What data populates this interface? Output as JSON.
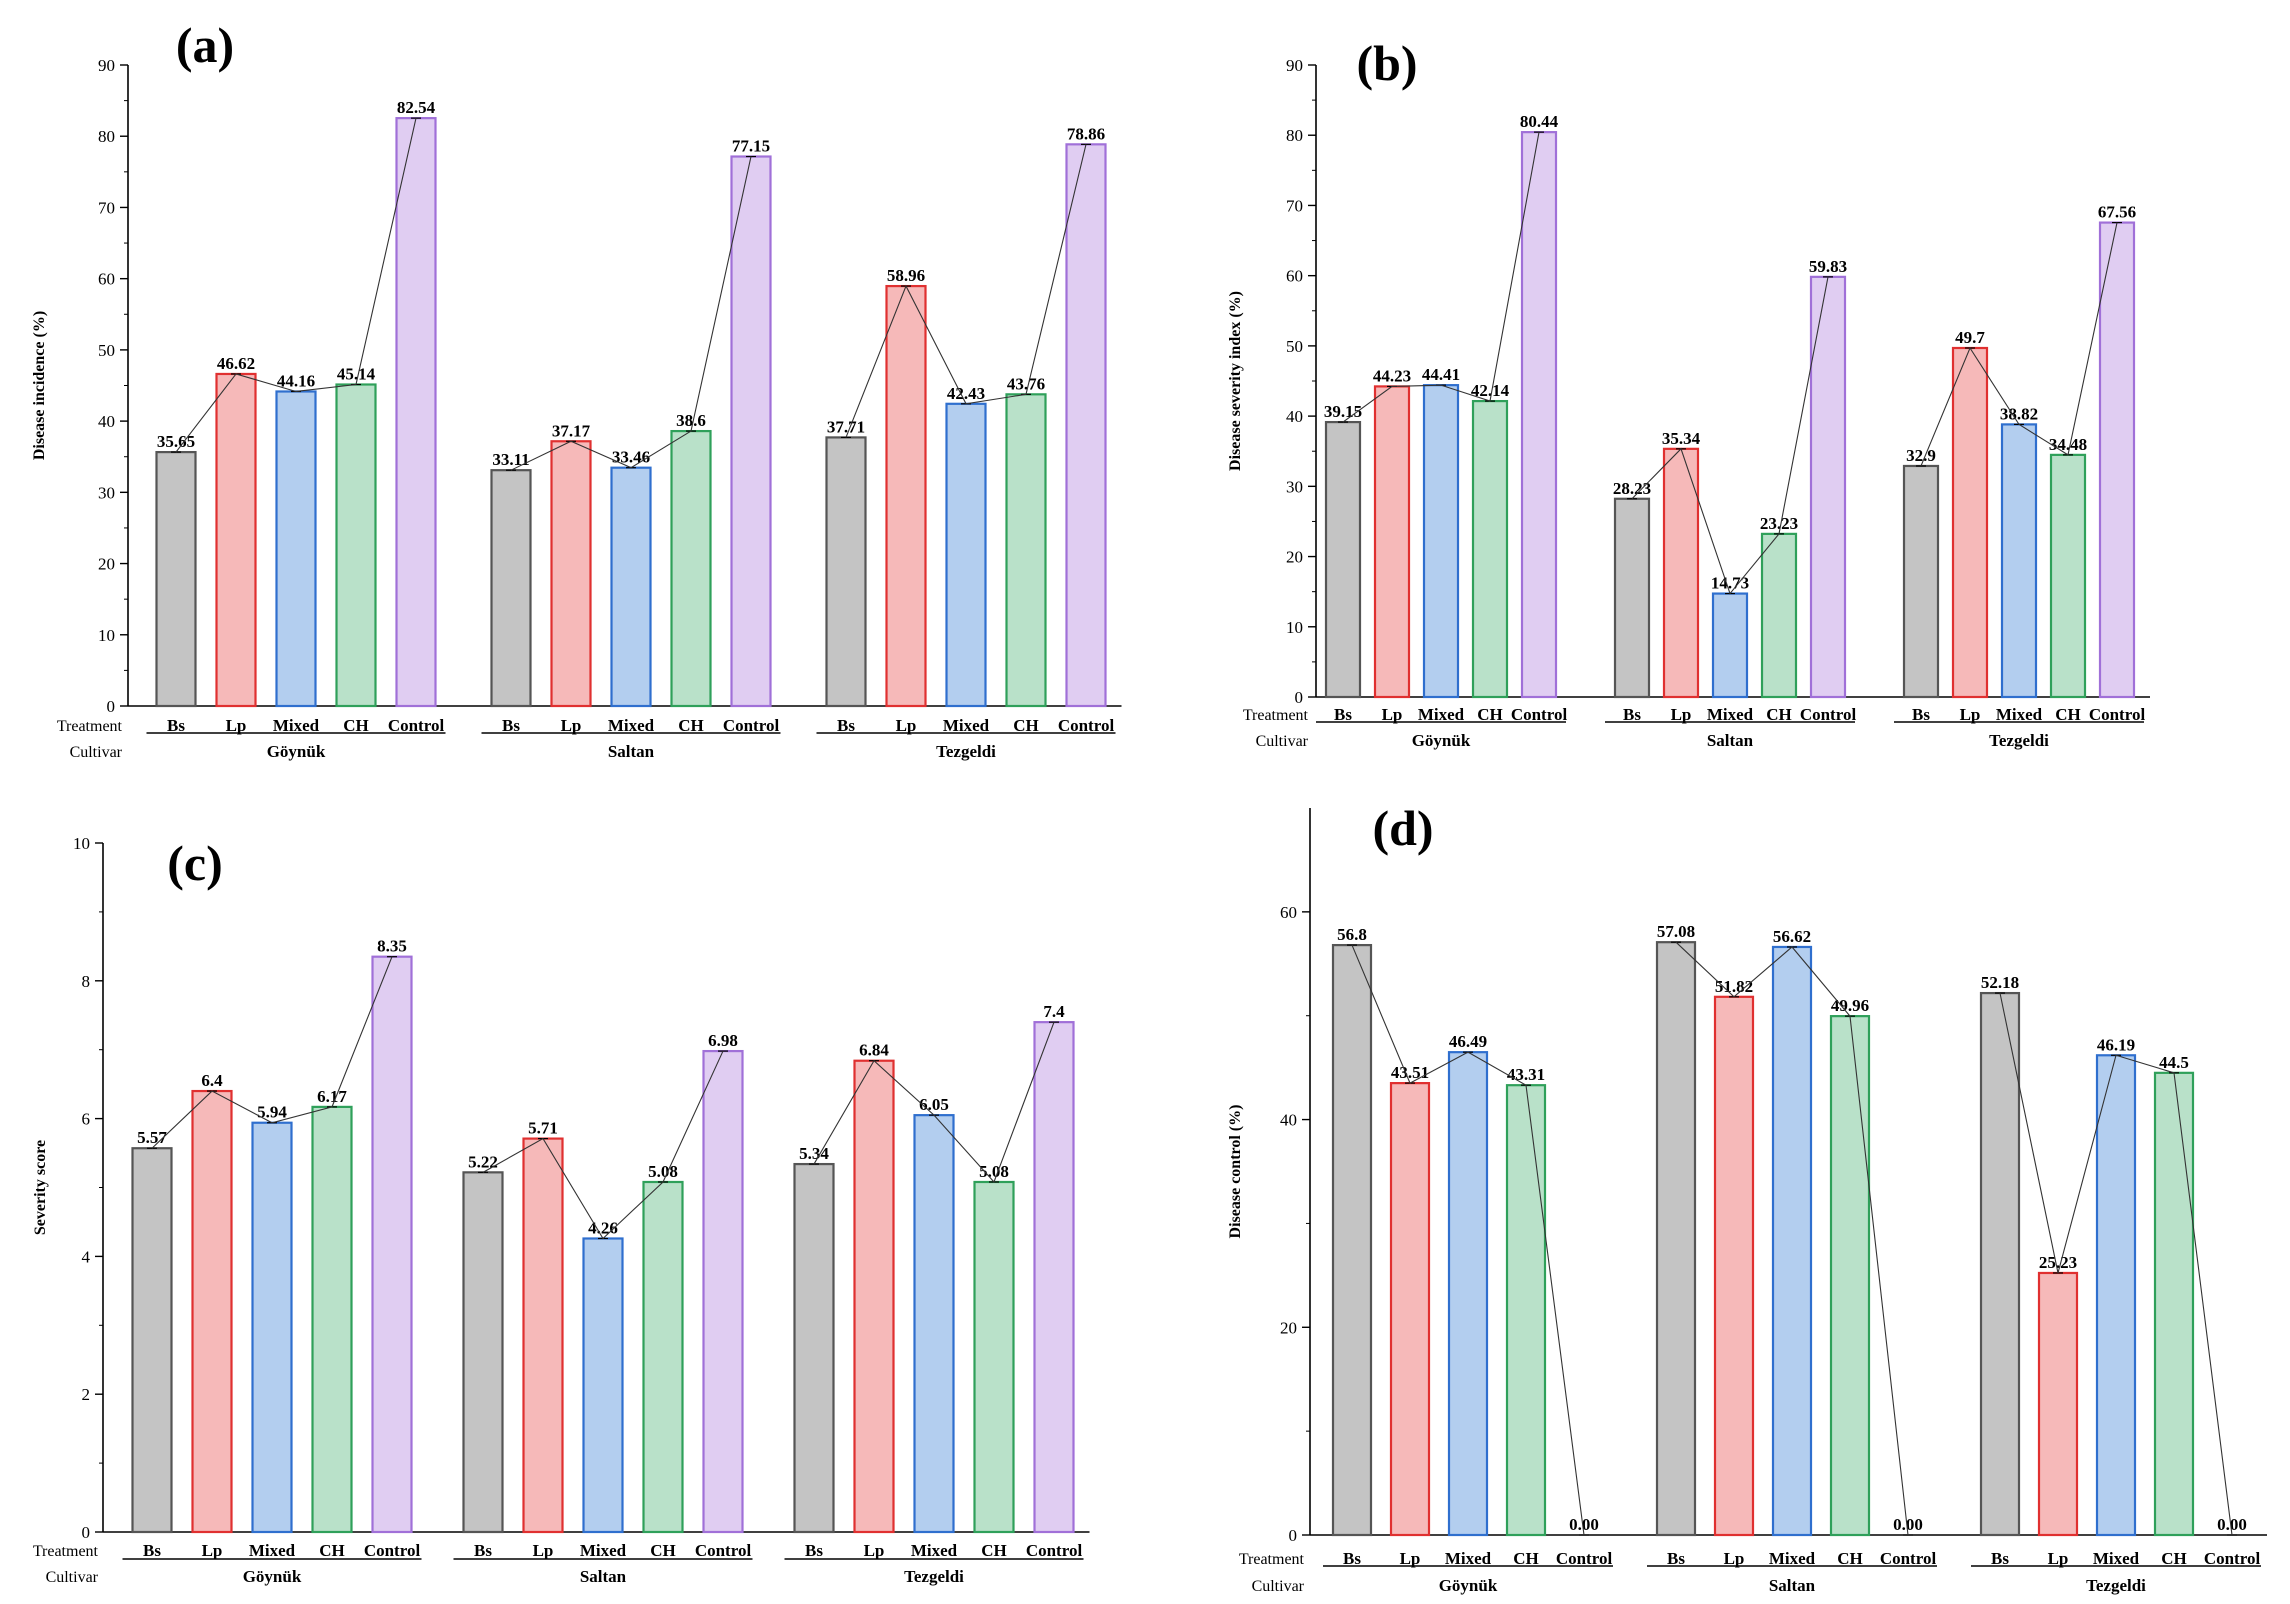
{
  "row_labels": {
    "treatment": "Treatment",
    "cultivar": "Cultivar"
  },
  "colors": {
    "Bs": {
      "fill": "#c4c4c4",
      "stroke": "#555555"
    },
    "Lp": {
      "fill": "#f6b9b9",
      "stroke": "#e03030"
    },
    "Mixed": {
      "fill": "#b3ceef",
      "stroke": "#2f6fce"
    },
    "CH": {
      "fill": "#b9e1c9",
      "stroke": "#2fa05a"
    },
    "Control": {
      "fill": "#e0cdf2",
      "stroke": "#a070d8"
    }
  },
  "chart_data": [
    {
      "panel": "(a)",
      "type": "bar",
      "ylabel": "Disease incidence (%)",
      "ylim": [
        0,
        90
      ],
      "yticks": [
        0,
        10,
        20,
        30,
        40,
        50,
        60,
        70,
        80,
        90
      ],
      "treatments": [
        "Bs",
        "Lp",
        "Mixed",
        "CH",
        "Control"
      ],
      "cultivars": [
        "Göynük",
        "Saltan",
        "Tezgeldi"
      ],
      "values": [
        [
          35.65,
          46.62,
          44.16,
          45.14,
          82.54
        ],
        [
          33.11,
          37.17,
          33.46,
          38.6,
          77.15
        ],
        [
          37.71,
          58.96,
          42.43,
          43.76,
          78.86
        ]
      ],
      "labels": [
        [
          "35.65",
          "46.62",
          "44.16",
          "45.14",
          "82.54"
        ],
        [
          "33.11",
          "37.17",
          "33.46",
          "38.6",
          "77.15"
        ],
        [
          "37.71",
          "58.96",
          "42.43",
          "43.76",
          "78.86"
        ]
      ]
    },
    {
      "panel": "(b)",
      "type": "bar",
      "ylabel": "Disease severity index (%)",
      "ylim": [
        0,
        90
      ],
      "yticks": [
        0,
        10,
        20,
        30,
        40,
        50,
        60,
        70,
        80,
        90
      ],
      "treatments": [
        "Bs",
        "Lp",
        "Mixed",
        "CH",
        "Control"
      ],
      "cultivars": [
        "Göynük",
        "Saltan",
        "Tezgeldi"
      ],
      "values": [
        [
          39.15,
          44.23,
          44.41,
          42.14,
          80.44
        ],
        [
          28.23,
          35.34,
          14.73,
          23.23,
          59.83
        ],
        [
          32.9,
          49.7,
          38.82,
          34.48,
          67.56
        ]
      ],
      "labels": [
        [
          "39.15",
          "44.23",
          "44.41",
          "42.14",
          "80.44"
        ],
        [
          "28.23",
          "35.34",
          "14.73",
          "23.23",
          "59.83"
        ],
        [
          "32.9",
          "49.7",
          "38.82",
          "34.48",
          "67.56"
        ]
      ]
    },
    {
      "panel": "(c)",
      "type": "bar",
      "ylabel": "Severity score",
      "ylim": [
        0,
        10
      ],
      "yticks": [
        0,
        2,
        4,
        6,
        8,
        10
      ],
      "treatments": [
        "Bs",
        "Lp",
        "Mixed",
        "CH",
        "Control"
      ],
      "cultivars": [
        "Göynük",
        "Saltan",
        "Tezgeldi"
      ],
      "values": [
        [
          5.57,
          6.4,
          5.94,
          6.17,
          8.35
        ],
        [
          5.22,
          5.71,
          4.26,
          5.08,
          6.98
        ],
        [
          5.34,
          6.84,
          6.05,
          5.08,
          7.4
        ]
      ],
      "labels": [
        [
          "5.57",
          "6.4",
          "5.94",
          "6.17",
          "8.35"
        ],
        [
          "5.22",
          "5.71",
          "4.26",
          "5.08",
          "6.98"
        ],
        [
          "5.34",
          "6.84",
          "6.05",
          "5.08",
          "7.4"
        ]
      ]
    },
    {
      "panel": "(d)",
      "type": "bar",
      "ylabel": "Disease control (%)",
      "ylim": [
        0,
        70
      ],
      "yticks": [
        0,
        20,
        40,
        60
      ],
      "treatments": [
        "Bs",
        "Lp",
        "Mixed",
        "CH",
        "Control"
      ],
      "cultivars": [
        "Göynük",
        "Saltan",
        "Tezgeldi"
      ],
      "values": [
        [
          56.8,
          43.51,
          46.49,
          43.31,
          0
        ],
        [
          57.08,
          51.82,
          56.62,
          49.96,
          0
        ],
        [
          52.18,
          25.23,
          46.19,
          44.5,
          0
        ]
      ],
      "labels": [
        [
          "56.8",
          "43.51",
          "46.49",
          "43.31",
          "0.00"
        ],
        [
          "57.08",
          "51.82",
          "56.62",
          "49.96",
          "0.00"
        ],
        [
          "52.18",
          "25.23",
          "46.19",
          "44.5",
          "0.00"
        ]
      ]
    }
  ]
}
